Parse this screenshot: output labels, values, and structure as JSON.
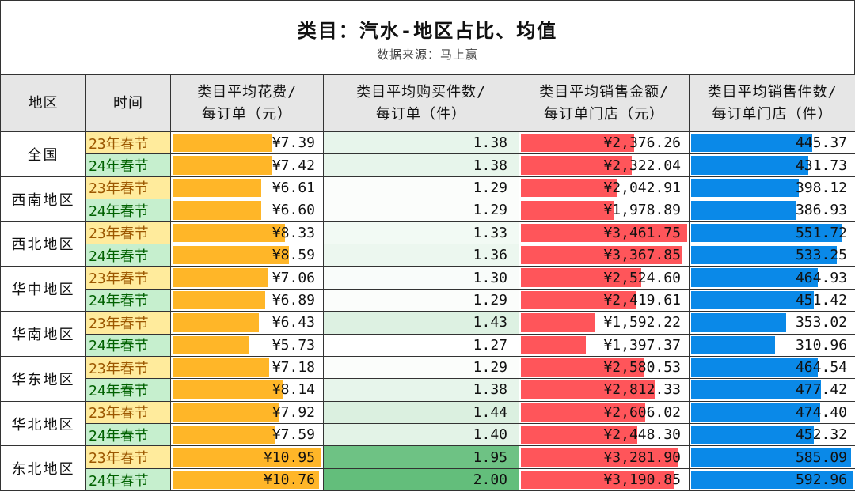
{
  "title": "类目：汽水-地区占比、均值",
  "subtitle": "数据来源：马上赢",
  "headers": [
    "地区",
    "时间",
    "类目平均花费/\n每订单（元）",
    "类目平均购买件数/\n每订单（件）",
    "类目平均销售金额/\n每订单门店（元）",
    "类目平均销售件数/\n每订单门店（件）"
  ],
  "colors": {
    "spend_bar": "#ffb628",
    "sales_amount_bar": "#ff555a",
    "sales_count_bar": "#0a89e8",
    "heat_max": "#63be7b",
    "heat_min": "#ffffff"
  },
  "regions": [
    {
      "name": "全国",
      "rows": [
        {
          "time": "23年春节",
          "spend": "¥7.39",
          "spend_v": 7.39,
          "qty": "1.38",
          "qty_v": 1.38,
          "amount": "¥2,376.26",
          "amount_v": 2376.26,
          "count": "445.37",
          "count_v": 445.37
        },
        {
          "time": "24年春节",
          "spend": "¥7.42",
          "spend_v": 7.42,
          "qty": "1.38",
          "qty_v": 1.38,
          "amount": "¥2,322.04",
          "amount_v": 2322.04,
          "count": "431.73",
          "count_v": 431.73
        }
      ]
    },
    {
      "name": "西南地区",
      "rows": [
        {
          "time": "23年春节",
          "spend": "¥6.61",
          "spend_v": 6.61,
          "qty": "1.29",
          "qty_v": 1.29,
          "amount": "¥2,042.91",
          "amount_v": 2042.91,
          "count": "398.12",
          "count_v": 398.12
        },
        {
          "time": "24年春节",
          "spend": "¥6.60",
          "spend_v": 6.6,
          "qty": "1.29",
          "qty_v": 1.29,
          "amount": "¥1,978.89",
          "amount_v": 1978.89,
          "count": "386.93",
          "count_v": 386.93
        }
      ]
    },
    {
      "name": "西北地区",
      "rows": [
        {
          "time": "23年春节",
          "spend": "¥8.33",
          "spend_v": 8.33,
          "qty": "1.33",
          "qty_v": 1.33,
          "amount": "¥3,461.75",
          "amount_v": 3461.75,
          "count": "551.72",
          "count_v": 551.72
        },
        {
          "time": "24年春节",
          "spend": "¥8.59",
          "spend_v": 8.59,
          "qty": "1.36",
          "qty_v": 1.36,
          "amount": "¥3,367.85",
          "amount_v": 3367.85,
          "count": "533.25",
          "count_v": 533.25
        }
      ]
    },
    {
      "name": "华中地区",
      "rows": [
        {
          "time": "23年春节",
          "spend": "¥7.06",
          "spend_v": 7.06,
          "qty": "1.30",
          "qty_v": 1.3,
          "amount": "¥2,524.60",
          "amount_v": 2524.6,
          "count": "464.93",
          "count_v": 464.93
        },
        {
          "time": "24年春节",
          "spend": "¥6.89",
          "spend_v": 6.89,
          "qty": "1.29",
          "qty_v": 1.29,
          "amount": "¥2,419.61",
          "amount_v": 2419.61,
          "count": "451.42",
          "count_v": 451.42
        }
      ]
    },
    {
      "name": "华南地区",
      "rows": [
        {
          "time": "23年春节",
          "spend": "¥6.43",
          "spend_v": 6.43,
          "qty": "1.43",
          "qty_v": 1.43,
          "amount": "¥1,592.22",
          "amount_v": 1592.22,
          "count": "353.02",
          "count_v": 353.02
        },
        {
          "time": "24年春节",
          "spend": "¥5.73",
          "spend_v": 5.73,
          "qty": "1.27",
          "qty_v": 1.27,
          "amount": "¥1,397.37",
          "amount_v": 1397.37,
          "count": "310.96",
          "count_v": 310.96
        }
      ]
    },
    {
      "name": "华东地区",
      "rows": [
        {
          "time": "23年春节",
          "spend": "¥7.18",
          "spend_v": 7.18,
          "qty": "1.29",
          "qty_v": 1.29,
          "amount": "¥2,580.53",
          "amount_v": 2580.53,
          "count": "464.54",
          "count_v": 464.54
        },
        {
          "time": "24年春节",
          "spend": "¥8.14",
          "spend_v": 8.14,
          "qty": "1.38",
          "qty_v": 1.38,
          "amount": "¥2,812.33",
          "amount_v": 2812.33,
          "count": "477.42",
          "count_v": 477.42
        }
      ]
    },
    {
      "name": "华北地区",
      "rows": [
        {
          "time": "23年春节",
          "spend": "¥7.92",
          "spend_v": 7.92,
          "qty": "1.44",
          "qty_v": 1.44,
          "amount": "¥2,606.02",
          "amount_v": 2606.02,
          "count": "474.40",
          "count_v": 474.4
        },
        {
          "time": "24年春节",
          "spend": "¥7.59",
          "spend_v": 7.59,
          "qty": "1.40",
          "qty_v": 1.4,
          "amount": "¥2,448.30",
          "amount_v": 2448.3,
          "count": "452.32",
          "count_v": 452.32
        }
      ]
    },
    {
      "name": "东北地区",
      "rows": [
        {
          "time": "23年春节",
          "spend": "¥10.95",
          "spend_v": 10.95,
          "qty": "1.95",
          "qty_v": 1.95,
          "amount": "¥3,281.90",
          "amount_v": 3281.9,
          "count": "585.09",
          "count_v": 585.09
        },
        {
          "time": "24年春节",
          "spend": "¥10.76",
          "spend_v": 10.76,
          "qty": "2.00",
          "qty_v": 2.0,
          "amount": "¥3,190.85",
          "amount_v": 3190.85,
          "count": "592.96",
          "count_v": 592.96
        }
      ]
    }
  ]
}
